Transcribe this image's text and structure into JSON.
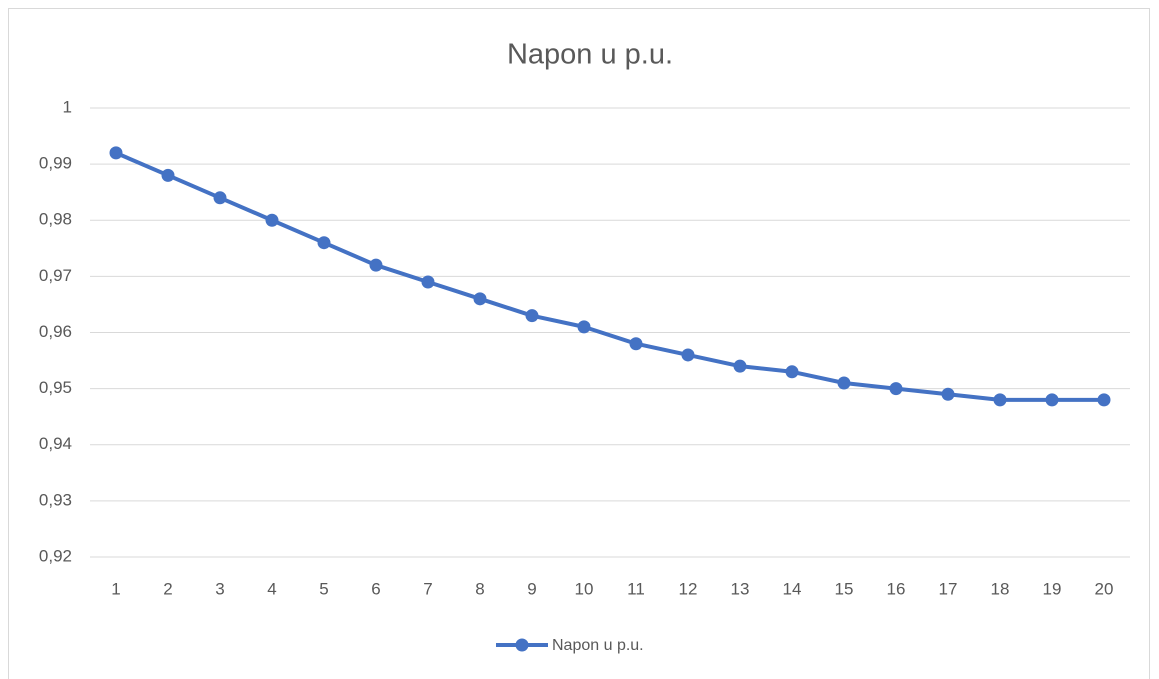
{
  "chart_data": {
    "type": "line",
    "title": "Napon u p.u.",
    "categories": [
      "1",
      "2",
      "3",
      "4",
      "5",
      "6",
      "7",
      "8",
      "9",
      "10",
      "11",
      "12",
      "13",
      "14",
      "15",
      "16",
      "17",
      "18",
      "19",
      "20"
    ],
    "series": [
      {
        "name": "Napon u p.u.",
        "color": "#4472c4",
        "values": [
          0.992,
          0.988,
          0.984,
          0.98,
          0.976,
          0.972,
          0.969,
          0.966,
          0.963,
          0.961,
          0.958,
          0.956,
          0.954,
          0.953,
          0.951,
          0.95,
          0.949,
          0.948,
          0.948,
          0.948
        ]
      }
    ],
    "ylim": [
      0.92,
      1
    ],
    "yticks": [
      {
        "value": 0.92,
        "label": "0,92"
      },
      {
        "value": 0.93,
        "label": "0,93"
      },
      {
        "value": 0.94,
        "label": "0,94"
      },
      {
        "value": 0.95,
        "label": "0,95"
      },
      {
        "value": 0.96,
        "label": "0,96"
      },
      {
        "value": 0.97,
        "label": "0,97"
      },
      {
        "value": 0.98,
        "label": "0,98"
      },
      {
        "value": 0.99,
        "label": "0,99"
      },
      1
    ],
    "grid": true,
    "legend": "bottom"
  }
}
